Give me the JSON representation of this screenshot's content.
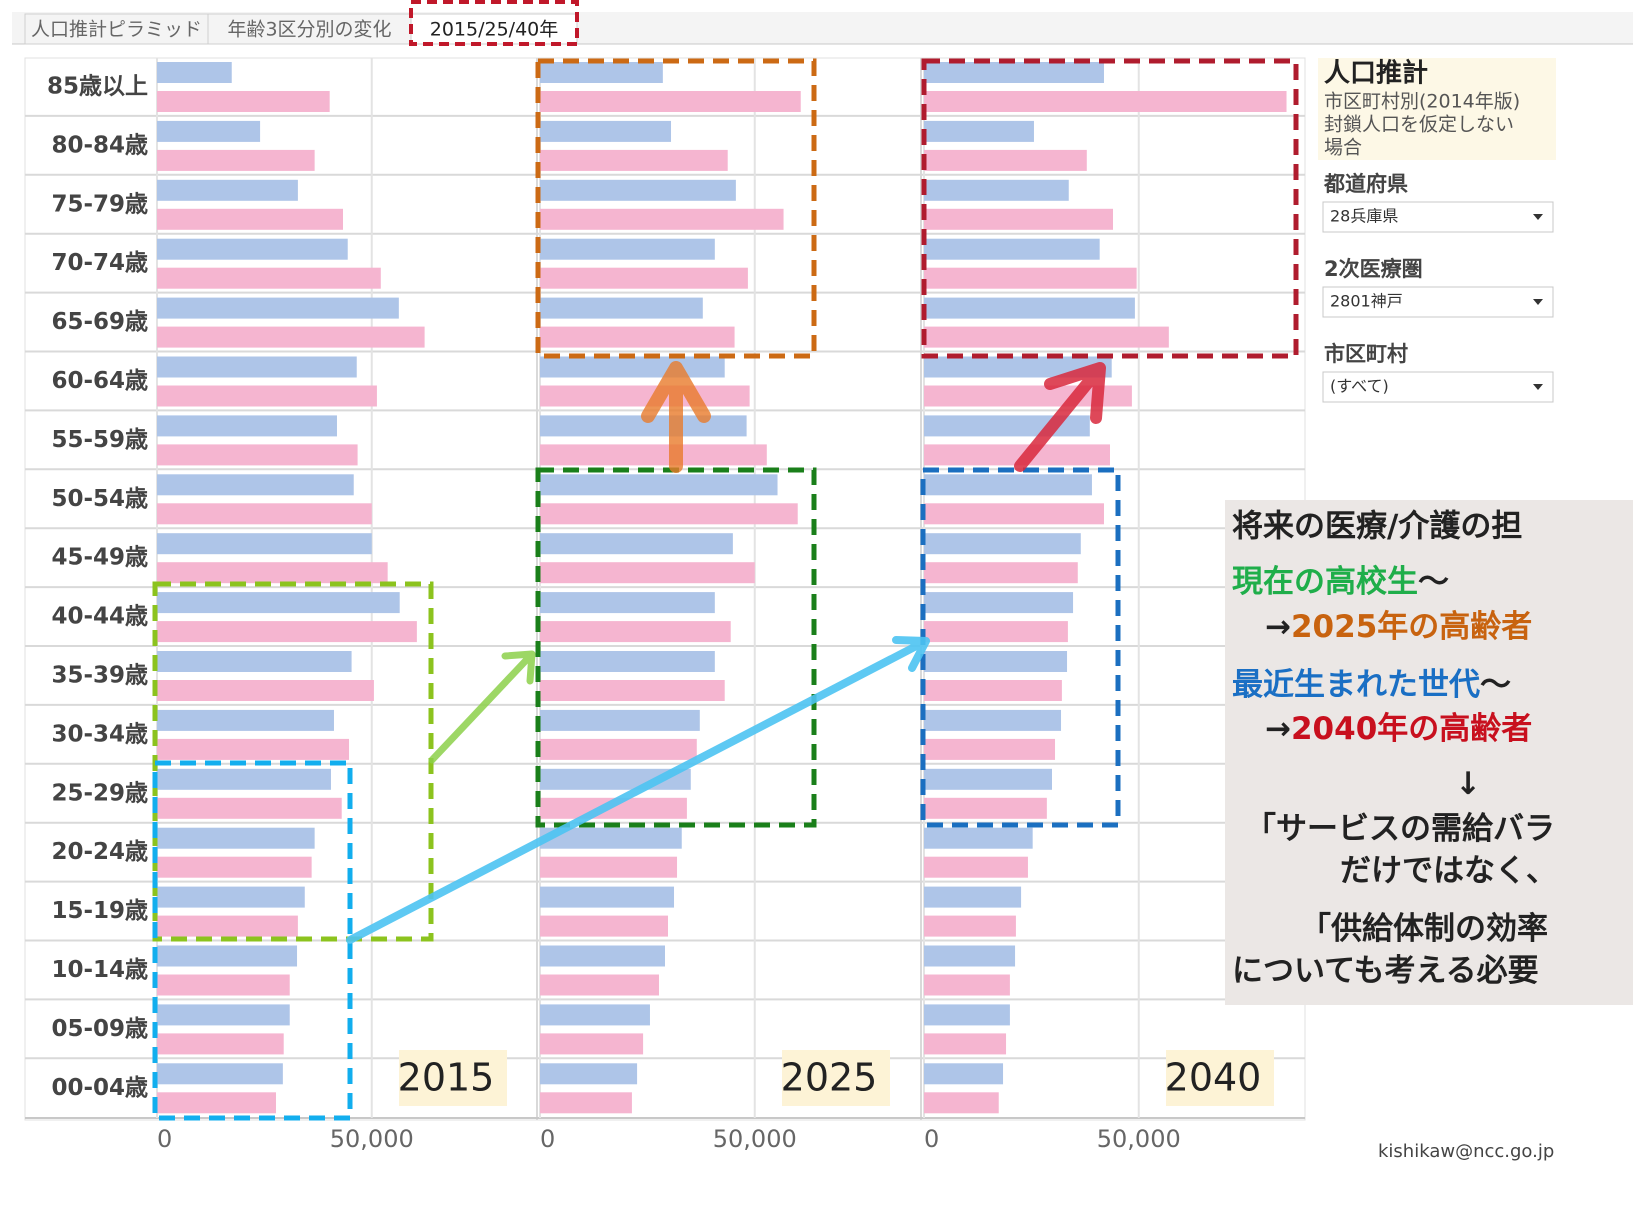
{
  "tabs": [
    "人口推計ピラミッド",
    "年齢3区分別の変化",
    "2015/25/40年"
  ],
  "chart_data": [
    {
      "type": "bar",
      "title": "2015",
      "categories": [
        "85歳以上",
        "80-84歳",
        "75-79歳",
        "70-74歳",
        "65-69歳",
        "60-64歳",
        "55-59歳",
        "50-54歳",
        "45-49歳",
        "40-44歳",
        "35-39歳",
        "30-34歳",
        "25-29歳",
        "20-24歳",
        "15-19歳",
        "10-14歳",
        "05-09歳",
        "00-04歳"
      ],
      "series": [
        {
          "color": "#aec5e8",
          "values": [
            17400,
            24000,
            32800,
            44400,
            56300,
            46500,
            41900,
            45800,
            50000,
            56500,
            45300,
            41200,
            40500,
            36700,
            34400,
            32600,
            30900,
            29300
          ]
        },
        {
          "color": "#f5b5d0",
          "values": [
            40200,
            36700,
            43300,
            52100,
            62300,
            51200,
            46700,
            50000,
            53700,
            60500,
            50500,
            44700,
            43000,
            36000,
            32800,
            30900,
            29500,
            27700
          ]
        }
      ],
      "xlim": [
        0,
        88000
      ],
      "xticks": [
        0,
        {
          "value": 50000,
          "label": "50,000"
        }
      ],
      "grid": true
    },
    {
      "type": "bar",
      "title": "2025",
      "series": [
        {
          "color": "#aec5e8",
          "values": [
            28600,
            30500,
            45600,
            40700,
            37900,
            43000,
            48100,
            55300,
            44900,
            40700,
            40700,
            37200,
            35100,
            33000,
            31200,
            29100,
            25600,
            22600
          ]
        },
        {
          "color": "#f5b5d0",
          "values": [
            60700,
            43700,
            56700,
            48400,
            45300,
            48800,
            52800,
            60000,
            50000,
            44400,
            43000,
            36500,
            34200,
            31900,
            29800,
            27700,
            24000,
            21400
          ]
        }
      ],
      "xlim": [
        0,
        88000
      ],
      "xticks": [
        0,
        {
          "value": 50000,
          "label": "50,000"
        }
      ],
      "grid": true
    },
    {
      "type": "bar",
      "title": "2040",
      "series": [
        {
          "color": "#aec5e8",
          "values": [
            41900,
            25600,
            33700,
            40900,
            49100,
            43700,
            38600,
            39100,
            36500,
            34700,
            33300,
            31900,
            29800,
            25300,
            22600,
            21200,
            20000,
            18400
          ]
        },
        {
          "color": "#f5b5d0",
          "values": [
            84400,
            37900,
            44000,
            49500,
            57000,
            48400,
            43300,
            41900,
            35800,
            33500,
            32100,
            30500,
            28600,
            24200,
            21400,
            20000,
            19100,
            17400
          ]
        }
      ],
      "xlim": [
        0,
        88000
      ],
      "xticks": [
        0,
        {
          "value": 50000,
          "label": "50,000"
        }
      ],
      "grid": true
    }
  ],
  "panel": {
    "title": "人口推計",
    "subtitle": [
      "市区町村別(2014年版)",
      "封鎖人口を仮定しない",
      "場合"
    ],
    "filters": [
      {
        "label": "都道府県",
        "value": "28兵庫県"
      },
      {
        "label": "2次医療圏",
        "value": "2801神戸"
      },
      {
        "label": "市区町村",
        "value": "(すべて)"
      }
    ]
  },
  "callout": {
    "heading": "将来の医療/介護の担",
    "lines": [
      [
        {
          "text": "現在の高校生",
          "color": "#1fae4a"
        },
        {
          "text": "～"
        }
      ],
      [
        {
          "text": "→"
        },
        {
          "text": "2025年の高齢者",
          "color": "#c8630f"
        }
      ],
      [
        {
          "text": "最近生まれた世代",
          "color": "#1a6fc4"
        },
        {
          "text": "～"
        }
      ],
      [
        {
          "text": "→"
        },
        {
          "text": "2040年の高齢者",
          "color": "#c8101e"
        }
      ],
      [
        {
          "text": "↓"
        }
      ],
      [
        {
          "text": "「サービスの需給バラ"
        }
      ],
      [
        {
          "text": "だけではなく、"
        }
      ],
      [
        {
          "text": "「供給体制の効率"
        }
      ],
      [
        {
          "text": "についても考える必要"
        }
      ]
    ]
  },
  "credit": "kishikaw@ncc.go.jp"
}
